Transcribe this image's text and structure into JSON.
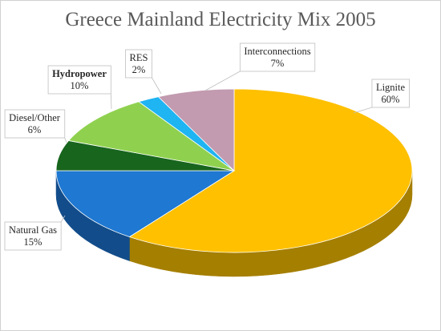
{
  "chart_data": {
    "type": "pie",
    "title": "Greece Mainland Electricity Mix 2005",
    "slices": [
      {
        "label": "Lignite",
        "value": 60,
        "value_text": "60%",
        "color": "#FFC000",
        "side_color": "#A57F00",
        "bold": false
      },
      {
        "label": "Natural Gas",
        "value": 15,
        "value_text": "15%",
        "color": "#1F78D1",
        "side_color": "#124C8A",
        "bold": false
      },
      {
        "label": "Diesel/Other",
        "value": 6,
        "value_text": "6%",
        "color": "#18651E",
        "side_color": "#0E4413",
        "bold": false
      },
      {
        "label": "Hydropower",
        "value": 10,
        "value_text": "10%",
        "color": "#8FD14F",
        "side_color": "#5E9A2C",
        "bold": true
      },
      {
        "label": "RES",
        "value": 2,
        "value_text": "2%",
        "color": "#1FB4F2",
        "side_color": "#117FAE",
        "bold": false
      },
      {
        "label": "Interconnections",
        "value": 7,
        "value_text": "7%",
        "color": "#C29BB0",
        "side_color": "#8A6A7C",
        "bold": false
      }
    ],
    "start_angle_deg": 0,
    "direction": "clockwise",
    "style": "3d-tilted",
    "label_style": "callout-boxes-with-leader-lines"
  }
}
